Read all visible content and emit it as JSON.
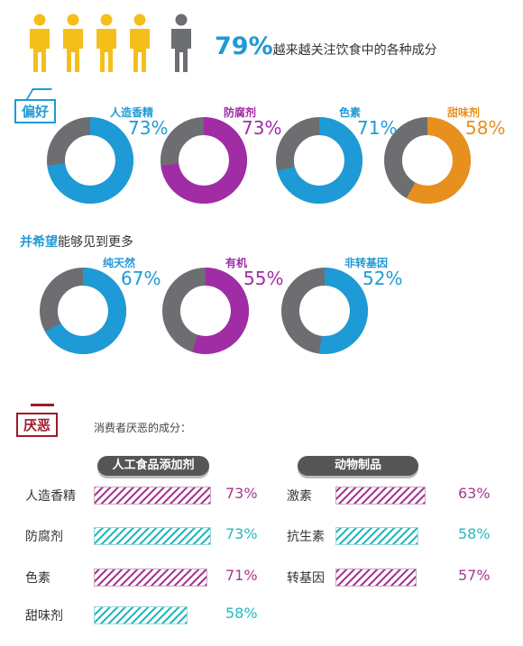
{
  "header": {
    "percent": "79%",
    "text": "越来越关注饮食中的各种成分",
    "people_total": 5,
    "people_highlight": 4
  },
  "sections": {
    "prefer_tag": "偏好",
    "hope_title_bold": "并希望",
    "hope_title_rest": "能够见到更多",
    "dislike_tag": "厌恶",
    "dislike_intro": "消费者厌恶的成分："
  },
  "colors": {
    "blue": "#1e9ad6",
    "purple": "#a02ca6",
    "orange": "#e8901e",
    "gray": "#6d6e71",
    "bar_purple": "#a8388f",
    "bar_teal": "#26b7bf",
    "person_highlight": "#f5bf1b",
    "person_other": "#6d6e71"
  },
  "chart_data": [
    {
      "type": "pie",
      "group": "偏好",
      "items": [
        {
          "label": "人造香精",
          "value": 73,
          "display": "73%",
          "color": "blue"
        },
        {
          "label": "防腐剂",
          "value": 73,
          "display": "73%",
          "color": "purple"
        },
        {
          "label": "色素",
          "value": 71,
          "display": "71%",
          "color": "blue"
        },
        {
          "label": "甜味剂",
          "value": 58,
          "display": "58%",
          "color": "orange"
        }
      ]
    },
    {
      "type": "pie",
      "group": "并希望能够见到更多",
      "items": [
        {
          "label": "纯天然",
          "value": 67,
          "display": "67%",
          "color": "blue"
        },
        {
          "label": "有机",
          "value": 55,
          "display": "55%",
          "color": "purple"
        },
        {
          "label": "非转基因",
          "value": 52,
          "display": "52%",
          "color": "blue"
        }
      ]
    },
    {
      "type": "bar",
      "title": "人工食品添加剂",
      "categories": [
        "人造香精",
        "防腐剂",
        "色素",
        "甜味剂"
      ],
      "values": [
        73,
        73,
        71,
        58
      ],
      "display": [
        "73%",
        "73%",
        "71%",
        "58%"
      ],
      "pattern": [
        "purple",
        "teal",
        "purple",
        "teal"
      ]
    },
    {
      "type": "bar",
      "title": "动物制品",
      "categories": [
        "激素",
        "抗生素",
        "转基因"
      ],
      "values": [
        63,
        58,
        57
      ],
      "display": [
        "63%",
        "58%",
        "57%"
      ],
      "pattern": [
        "purple",
        "teal",
        "purple"
      ]
    }
  ]
}
